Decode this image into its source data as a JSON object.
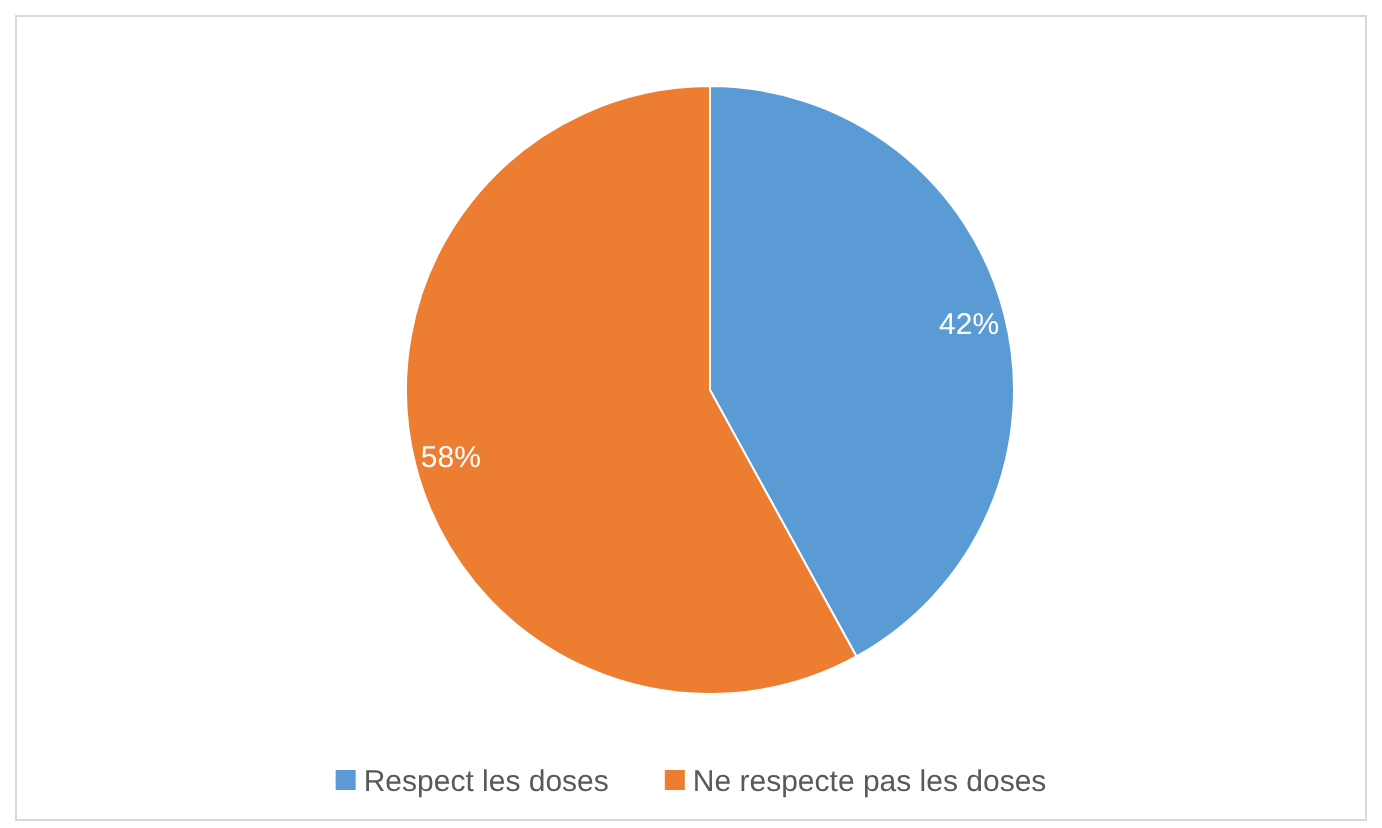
{
  "chart_data": {
    "type": "pie",
    "categories": [
      "Respect les doses",
      "Ne respecte pas les doses"
    ],
    "values": [
      42,
      58
    ],
    "colors": [
      "#5b9bd5",
      "#ed7d31"
    ],
    "value_labels": [
      "42%",
      "58%"
    ],
    "legend": "bottom"
  }
}
